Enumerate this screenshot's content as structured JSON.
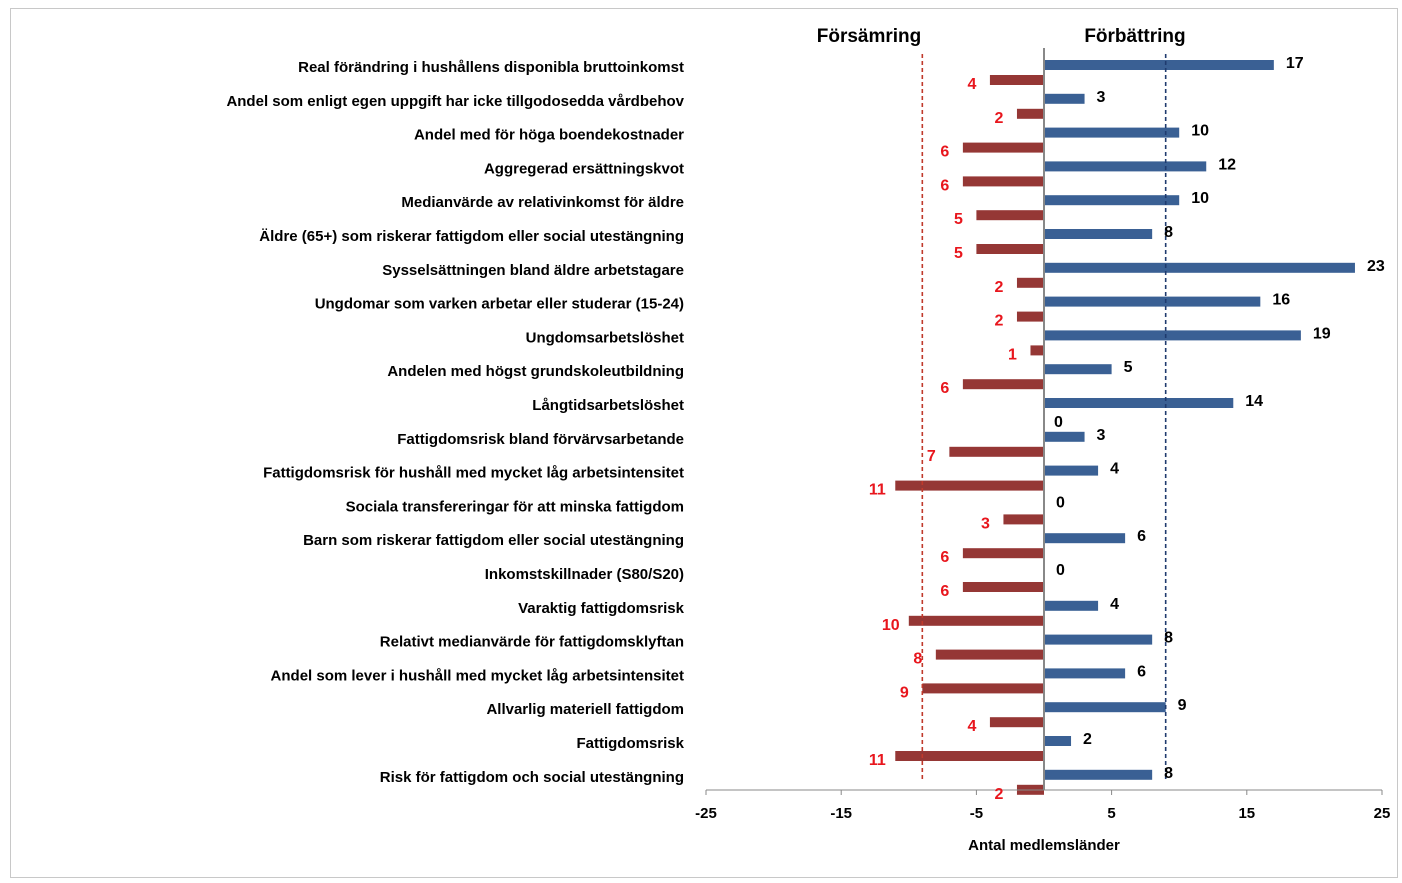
{
  "chart_data": {
    "type": "bar",
    "orientation": "horizontal",
    "headers": {
      "negative": "Försämring",
      "positive": "Förbättring"
    },
    "xlabel": "Antal medlemsländer",
    "xlim": [
      -25,
      25
    ],
    "xticks": [
      -25,
      -15,
      -5,
      5,
      15,
      25
    ],
    "reference_lines": [
      {
        "side": "negative",
        "value": -9,
        "color": "#c0392b",
        "style": "dashed"
      },
      {
        "side": "positive",
        "value": 9,
        "color": "#1f3b6e",
        "style": "dashed"
      }
    ],
    "colors": {
      "positive": "#3a6094",
      "negative": "#953735",
      "negative_label": "#e8161d"
    },
    "categories": [
      "Real förändring i hushållens disponibla bruttoinkomst",
      "Andel som enligt egen uppgift har icke tillgodosedda vårdbehov",
      "Andel med för höga boendekostnader",
      "Aggregerad ersättningskvot",
      "Medianvärde av relativinkomst för äldre",
      "Äldre (65+) som riskerar fattigdom eller social utestängning",
      "Sysselsättningen bland äldre arbetstagare",
      "Ungdomar som varken arbetar eller studerar (15-24)",
      "Ungdomsarbetslöshet",
      "Andelen med högst grundskoleutbildning",
      "Långtidsarbetslöshet",
      "Fattigdomsrisk bland förvärvsarbetande",
      "Fattigdomsrisk för hushåll med mycket låg arbetsintensitet",
      "Sociala transfereringar för att minska fattigdom",
      "Barn som riskerar fattigdom eller social utestängning",
      "Inkomstskillnader (S80/S20)",
      "Varaktig fattigdomsrisk",
      "Relativt medianvärde för fattigdomsklyftan",
      "Andel som lever i hushåll med mycket låg arbetsintensitet",
      "Allvarlig materiell fattigdom",
      "Fattigdomsrisk",
      "Risk för fattigdom och social utestängning"
    ],
    "series": [
      {
        "name": "Förbättring",
        "values": [
          17,
          3,
          10,
          12,
          10,
          8,
          23,
          16,
          19,
          5,
          14,
          3,
          4,
          0,
          6,
          0,
          4,
          8,
          6,
          9,
          2,
          8
        ]
      },
      {
        "name": "Försämring",
        "values": [
          4,
          2,
          6,
          6,
          5,
          5,
          2,
          2,
          1,
          6,
          0,
          7,
          11,
          3,
          6,
          6,
          10,
          8,
          9,
          4,
          11,
          2
        ]
      }
    ]
  }
}
